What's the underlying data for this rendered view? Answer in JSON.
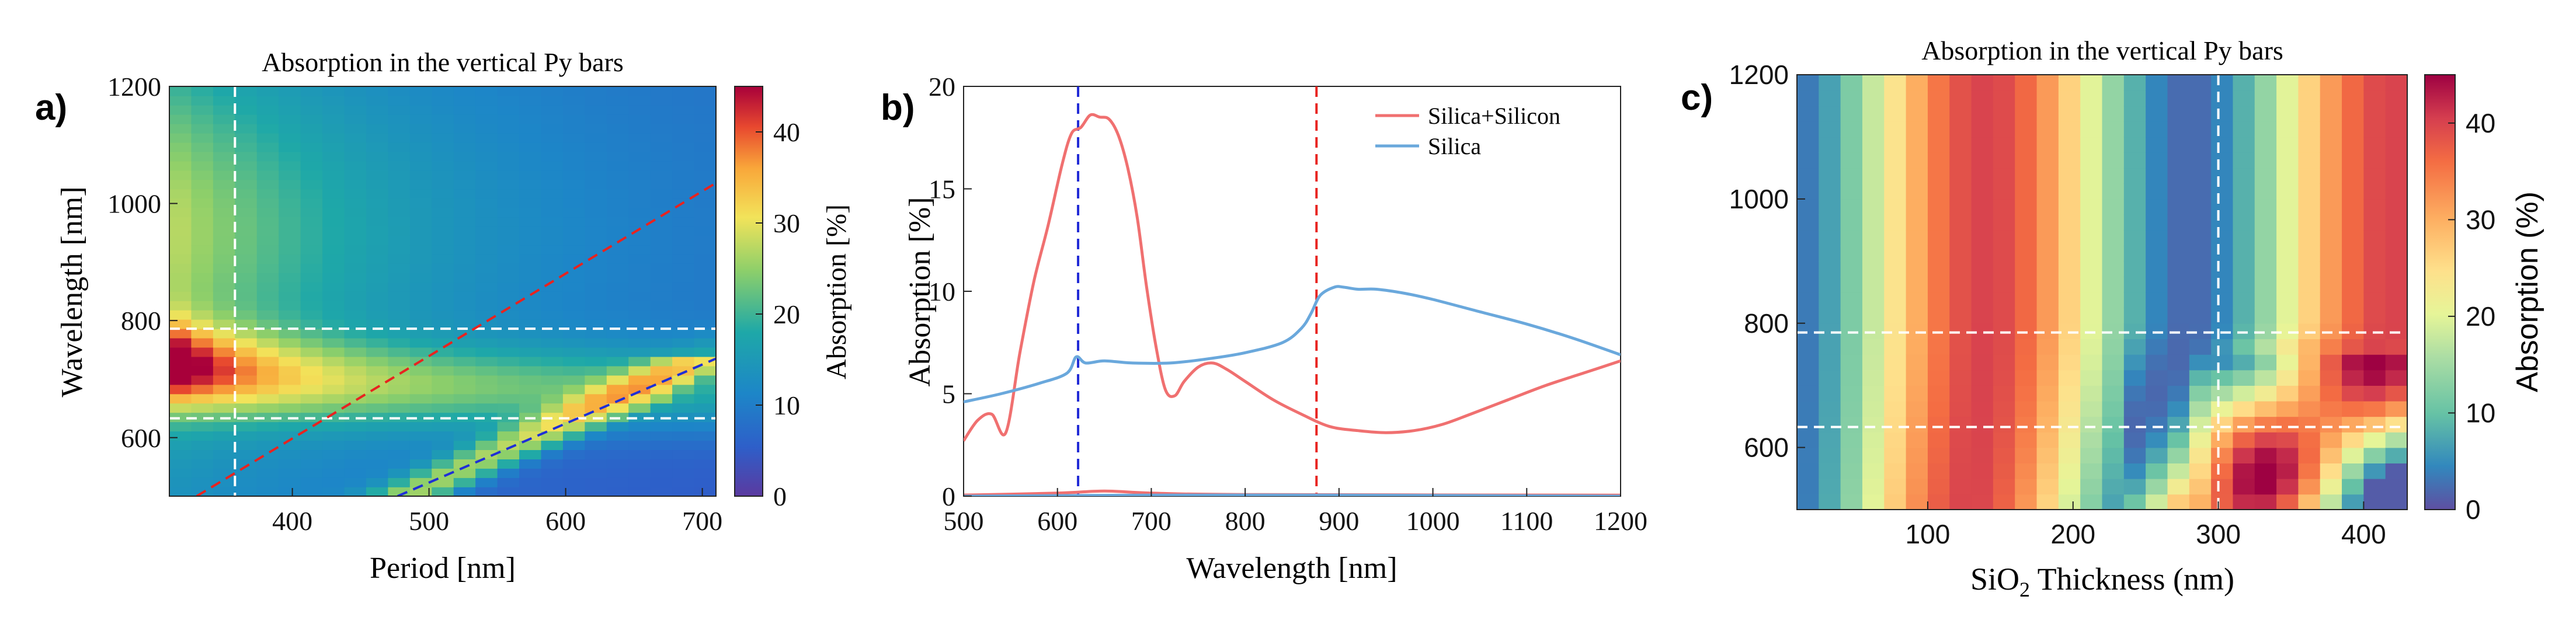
{
  "chart_data": [
    {
      "panel_label": "a)",
      "type": "heatmap",
      "title": "Absorption in the vertical Py bars",
      "xlabel": "Period [nm]",
      "ylabel": "Wavelength [nm]",
      "xlim": [
        310,
        710
      ],
      "ylim": [
        500,
        1200
      ],
      "xticks": [
        "400",
        "500",
        "600",
        "700"
      ],
      "yticks": [
        "600",
        "800",
        "1000",
        "1200"
      ],
      "colorbar": {
        "label": "Absorption  [%]",
        "range": [
          0,
          45
        ],
        "ticks": [
          "0",
          "10",
          "20",
          "30",
          "40"
        ]
      },
      "guides": [
        {
          "kind": "vline",
          "value": 358,
          "color": "#ffffff"
        },
        {
          "kind": "hline",
          "value": 786,
          "color": "#ffffff"
        },
        {
          "kind": "hline",
          "value": 633,
          "color": "#ffffff"
        },
        {
          "kind": "line",
          "from": [
            330,
            500
          ],
          "to": [
            710,
            1035
          ],
          "color": "#e8231f"
        },
        {
          "kind": "line",
          "from": [
            477,
            500
          ],
          "to": [
            710,
            735
          ],
          "color": "#1f2fd6"
        }
      ]
    },
    {
      "panel_label": "b)",
      "type": "line",
      "xlabel": "Wavelength [nm]",
      "ylabel": "Absorption [%]",
      "xlim": [
        500,
        1200
      ],
      "ylim": [
        0,
        20
      ],
      "xticks": [
        "500",
        "600",
        "700",
        "800",
        "900",
        "1000",
        "1100",
        "1200"
      ],
      "yticks": [
        "0",
        "5",
        "10",
        "15",
        "20"
      ],
      "series": [
        {
          "name": "Silica+Silicon",
          "color": "#f07070",
          "x": [
            500,
            515,
            530,
            545,
            560,
            575,
            590,
            605,
            615,
            625,
            635,
            645,
            655,
            665,
            675,
            685,
            695,
            705,
            715,
            725,
            735,
            750,
            765,
            780,
            800,
            830,
            860,
            890,
            920,
            950,
            980,
            1010,
            1040,
            1080,
            1120,
            1160,
            1200
          ],
          "y": [
            2.7,
            3.7,
            4.0,
            3.1,
            7.0,
            10.5,
            13.2,
            16.2,
            17.7,
            18.0,
            18.6,
            18.5,
            18.4,
            17.6,
            16.0,
            13.6,
            10.2,
            7.3,
            5.2,
            4.9,
            5.6,
            6.3,
            6.5,
            6.2,
            5.6,
            4.7,
            4.0,
            3.4,
            3.2,
            3.1,
            3.2,
            3.5,
            4.0,
            4.7,
            5.4,
            6.0,
            6.6
          ]
        },
        {
          "name": "Silica",
          "color": "#6aa8dc",
          "x": [
            500,
            540,
            580,
            610,
            620,
            630,
            650,
            680,
            720,
            760,
            800,
            840,
            860,
            870,
            880,
            895,
            905,
            920,
            940,
            970,
            1000,
            1050,
            1100,
            1150,
            1200
          ],
          "y": [
            4.6,
            5.0,
            5.5,
            6.0,
            6.8,
            6.5,
            6.6,
            6.5,
            6.5,
            6.7,
            7.0,
            7.5,
            8.2,
            8.9,
            9.8,
            10.2,
            10.2,
            10.1,
            10.1,
            9.9,
            9.6,
            9.0,
            8.4,
            7.7,
            6.9
          ]
        },
        {
          "name": "",
          "color": "#f07070",
          "x": [
            500,
            600,
            650,
            700,
            800,
            1200
          ],
          "y": [
            0.05,
            0.15,
            0.25,
            0.15,
            0.08,
            0.05
          ]
        },
        {
          "name": "",
          "color": "#6aa8dc",
          "x": [
            500,
            700,
            900,
            1200
          ],
          "y": [
            0.0,
            0.05,
            0.05,
            0.0
          ]
        }
      ],
      "guides": [
        {
          "kind": "vline",
          "value": 622,
          "color": "#2029d6"
        },
        {
          "kind": "vline",
          "value": 876,
          "color": "#e8231f"
        }
      ]
    },
    {
      "panel_label": "c)",
      "type": "heatmap",
      "title": "Absorption in the vertical Py bars",
      "xlabel_main": "SiO",
      "xlabel_sub": "2",
      "xlabel_rest": " Thickness (nm)",
      "ylabel": "",
      "xlim": [
        10,
        430
      ],
      "ylim": [
        500,
        1200
      ],
      "xticks": [
        "100",
        "200",
        "300",
        "400"
      ],
      "yticks": [
        "600",
        "800",
        "1000",
        "1200"
      ],
      "colorbar": {
        "label": "Absorption (%)",
        "range": [
          0,
          45
        ],
        "ticks": [
          "0",
          "10",
          "20",
          "30",
          "40"
        ]
      },
      "guides": [
        {
          "kind": "vline",
          "value": 300,
          "color": "#ffffff"
        },
        {
          "kind": "hline",
          "value": 785,
          "color": "#ffffff"
        },
        {
          "kind": "hline",
          "value": 633,
          "color": "#ffffff"
        }
      ]
    }
  ]
}
